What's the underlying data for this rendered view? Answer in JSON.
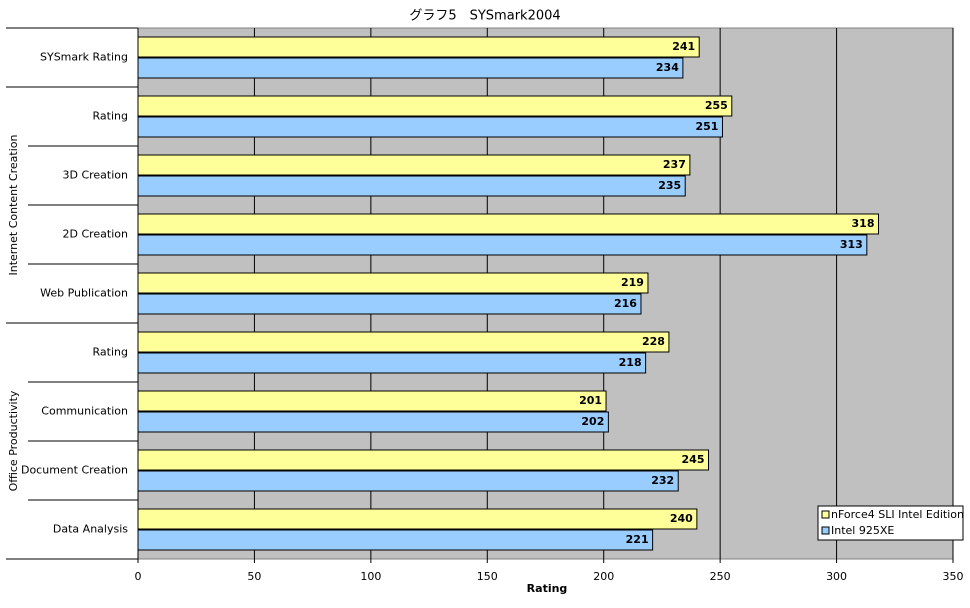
{
  "chart_data": {
    "type": "bar",
    "orientation": "horizontal",
    "title": "グラフ5　SYSmark2004",
    "xlabel": "Rating",
    "categories": [
      "SYSmark Rating",
      "Rating",
      "3D Creation",
      "2D Creation",
      "Web Publication",
      "Rating",
      "Communication",
      "Document Creation",
      "Data Analysis"
    ],
    "groups": [
      "Internet Content Creation",
      "Office Productivity"
    ],
    "series": [
      {
        "name": "nForce4 SLI Intel Edition",
        "color": "#ffff99",
        "values": [
          241,
          255,
          237,
          318,
          219,
          228,
          201,
          245,
          240
        ]
      },
      {
        "name": "Intel 925XE",
        "color": "#99ccff",
        "values": [
          234,
          251,
          235,
          313,
          216,
          218,
          202,
          232,
          221
        ]
      }
    ],
    "xlim": [
      0,
      350
    ],
    "xticks": [
      0,
      50,
      100,
      150,
      200,
      250,
      300,
      350
    ],
    "grid": true,
    "legend": "bottom-right",
    "plot_background": "#c0c0c0"
  }
}
